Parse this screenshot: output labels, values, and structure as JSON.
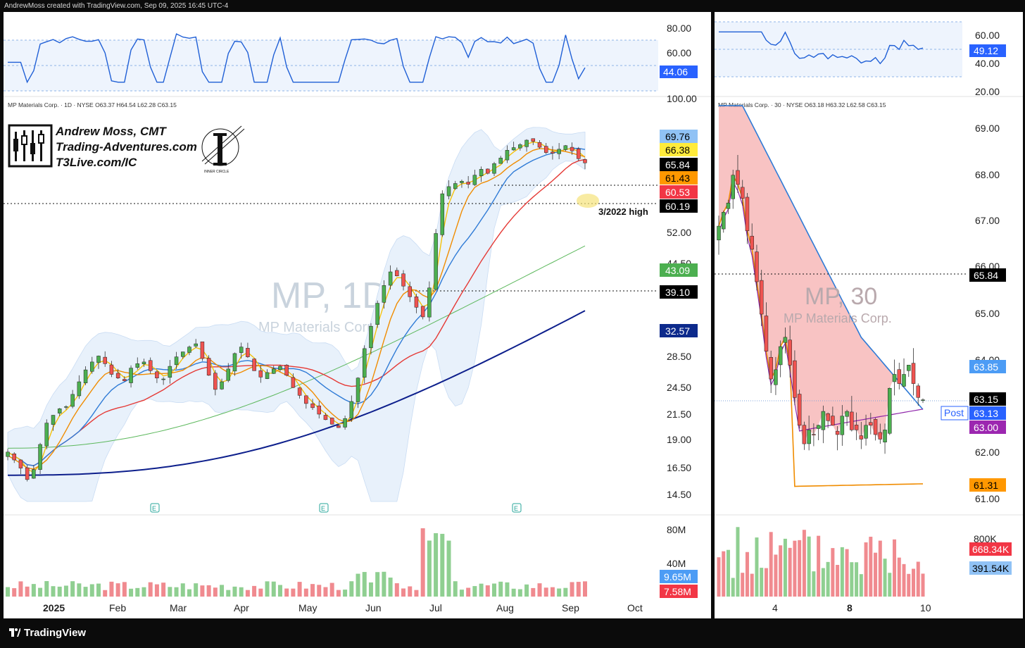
{
  "header": {
    "attribution": "AndrewMoss created with TradingView.com, Sep 09, 2025 16:45 UTC-4"
  },
  "footer": {
    "brand": "TradingView"
  },
  "author": {
    "name": "Andrew Moss, CMT",
    "site": "Trading-Adventures.com",
    "link": "T3Live.com/IC",
    "badge_text": "INNER CIRCLE"
  },
  "colors": {
    "ma_blue": "#2f7bd6",
    "ma_yellow": "#f5c20b",
    "ma_orange": "#f08c00",
    "ma_red": "#e53935",
    "ma_green": "#5cb85c",
    "ma_navy": "#0d1f8c",
    "candle_up": "#4caf50",
    "candle_down": "#ef5350",
    "band_fill": "#e8f1fb",
    "cloud_red": "#f4a3a3",
    "rsi_line": "#1f5fd6"
  },
  "chart_data": [
    {
      "type": "candlestick",
      "title": "MP, 1D",
      "subtitle": "MP Materials Corp",
      "legend_text": "MP Materials Corp. · 1D · NYSE  O63.37  H64.54  L62.28  C63.15",
      "x_ticks": [
        "2025",
        "Feb",
        "Mar",
        "Apr",
        "May",
        "Jun",
        "Jul",
        "Aug",
        "Sep",
        "Oct"
      ],
      "y_ticks": [
        "100.00",
        "52.00",
        "44.50",
        "28.50",
        "24.50",
        "21.50",
        "19.00",
        "16.50",
        "14.50"
      ],
      "price_tags": [
        {
          "label": "69.76",
          "bg": "#90c2f5",
          "fg": "#000000"
        },
        {
          "label": "66.38",
          "bg": "#ffeb3b",
          "fg": "#000000"
        },
        {
          "label": "65.84",
          "bg": "#000000",
          "fg": "#ffffff"
        },
        {
          "label": "61.43",
          "bg": "#ff9800",
          "fg": "#000000"
        },
        {
          "label": "60.53",
          "bg": "#f23645",
          "fg": "#ffffff"
        },
        {
          "label": "60.19",
          "bg": "#000000",
          "fg": "#ffffff"
        },
        {
          "label": "43.09",
          "bg": "#4caf50",
          "fg": "#ffffff"
        },
        {
          "label": "39.10",
          "bg": "#000000",
          "fg": "#ffffff"
        },
        {
          "label": "32.57",
          "bg": "#0d2a8c",
          "fg": "#ffffff"
        }
      ],
      "annotations": [
        "3/2022 high"
      ],
      "reference_lines": [
        65.84,
        60.19,
        39.1
      ],
      "earnings_markers": [
        "E",
        "E",
        "E"
      ],
      "close_series": [
        17.2,
        16.6,
        16.0,
        15.2,
        15.9,
        17.8,
        19.6,
        20.3,
        20.9,
        21.1,
        22.3,
        23.6,
        24.9,
        25.8,
        26.5,
        25.6,
        24.4,
        24.0,
        23.7,
        25.1,
        25.6,
        25.8,
        24.8,
        24.0,
        23.9,
        25.3,
        26.4,
        27.0,
        27.6,
        28.0,
        26.2,
        24.3,
        22.8,
        23.6,
        25.0,
        26.8,
        27.6,
        26.4,
        24.8,
        24.1,
        24.6,
        25.0,
        25.3,
        24.3,
        23.0,
        22.2,
        21.4,
        21.0,
        20.4,
        19.9,
        19.5,
        19.2,
        20.0,
        21.6,
        24.0,
        27.4,
        30.3,
        33.6,
        36.4,
        38.7,
        38.0,
        36.3,
        34.6,
        33.0,
        31.6,
        36.0,
        46.0,
        55.0,
        56.8,
        57.6,
        58.2,
        57.4,
        59.8,
        61.4,
        60.3,
        63.0,
        64.6,
        66.9,
        67.7,
        68.6,
        70.0,
        69.6,
        67.8,
        66.2,
        66.0,
        67.2,
        68.3,
        66.7,
        64.4,
        63.2
      ],
      "volume_tags": [
        {
          "label": "9.65M",
          "bg": "#4c9cf5",
          "fg": "#ffffff"
        },
        {
          "label": "7.58M",
          "bg": "#f23645",
          "fg": "#ffffff"
        }
      ],
      "volume_axis": [
        "80M",
        "40M"
      ],
      "rsi": {
        "axis": [
          "80.00",
          "60.00"
        ],
        "last_tag": "44.06",
        "last_value": 44.06
      }
    },
    {
      "type": "candlestick",
      "title": "MP, 30",
      "subtitle": "MP Materials Corp.",
      "legend_text": "MP Materials Corp. · 30 · NYSE  O63.18  H63.32  L62.58  C63.15",
      "x_ticks": [
        "4",
        "8",
        "10"
      ],
      "y_ticks": [
        "69.00",
        "68.00",
        "67.00",
        "66.00",
        "65.00",
        "64.00",
        "62.00",
        "61.00"
      ],
      "price_tags": [
        {
          "label": "65.84",
          "bg": "#000000",
          "fg": "#ffffff"
        },
        {
          "label": "63.85",
          "bg": "#4c9cf5",
          "fg": "#ffffff"
        },
        {
          "label": "63.15",
          "bg": "#000000",
          "fg": "#ffffff"
        },
        {
          "label": "63.13",
          "bg": "#2962ff",
          "fg": "#ffffff"
        },
        {
          "label": "63.00",
          "bg": "#9c27b0",
          "fg": "#ffffff"
        },
        {
          "label": "61.31",
          "bg": "#ff9800",
          "fg": "#000000"
        }
      ],
      "post_label": "Post",
      "close_series": [
        66.9,
        67.2,
        67.4,
        68.0,
        67.8,
        67.5,
        66.8,
        66.4,
        65.7,
        65.0,
        64.2,
        63.6,
        63.8,
        64.3,
        64.5,
        63.9,
        63.2,
        62.6,
        62.2,
        62.5,
        62.4,
        62.6,
        62.9,
        62.7,
        62.6,
        62.4,
        62.8,
        62.9,
        62.5,
        62.5,
        62.3,
        62.6,
        62.6,
        62.4,
        62.3,
        62.5,
        63.4,
        63.7,
        63.5,
        63.7,
        63.9,
        63.5,
        63.2,
        63.15
      ],
      "volume_tags": [
        {
          "label": "668.34K",
          "bg": "#f23645",
          "fg": "#ffffff"
        },
        {
          "label": "391.54K",
          "bg": "#90c2f5",
          "fg": "#000000"
        }
      ],
      "volume_axis": [
        "800K"
      ],
      "rsi": {
        "axis": [
          "60.00",
          "40.00",
          "20.00"
        ],
        "last_tag": "49.12",
        "last_value": 49.12
      }
    }
  ]
}
